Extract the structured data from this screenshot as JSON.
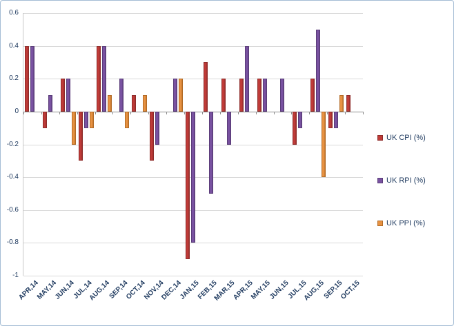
{
  "chart": {
    "background": "#ffffff",
    "frame_border_color": "#a3bcd4",
    "grid_color": "#d9d9d9",
    "zero_line_color": "#8c8c8c",
    "label_color": "#1f3a5f",
    "y_ticks": [
      "0.6",
      "0.4",
      "0.2",
      "0",
      "-0.2",
      "-0.4",
      "-0.6",
      "-0.8",
      "-1"
    ]
  },
  "chart_data": {
    "type": "bar",
    "title": "",
    "xlabel": "",
    "ylabel": "",
    "ylim": [
      -1,
      0.6
    ],
    "ytick_step": 0.2,
    "grid": true,
    "legend_position": "right",
    "categories": [
      "APR,14",
      "MAY,14",
      "JUN,14",
      "JUL,14",
      "AUG,14",
      "SEP,14",
      "OCT,14",
      "NOV,14",
      "DEC,14",
      "JAN,15",
      "FEB,15",
      "MAR,15",
      "APR,15",
      "MAY,15",
      "JUN,15",
      "JUL,15",
      "AUG,15",
      "SEP,15",
      "OCT,15"
    ],
    "series": [
      {
        "name": "UK CPI (%)",
        "color": "#bf3b38",
        "border": "#8e2b29",
        "values": [
          0.4,
          -0.1,
          0.2,
          -0.3,
          0.4,
          0,
          0.1,
          -0.3,
          0,
          -0.9,
          0.3,
          0.2,
          0.2,
          0.2,
          0,
          -0.2,
          0.2,
          -0.1,
          0.1
        ]
      },
      {
        "name": "UK RPI (%)",
        "color": "#7952a1",
        "border": "#5a3c79",
        "values": [
          0.4,
          0.1,
          0.2,
          -0.1,
          0.4,
          0.2,
          0,
          -0.2,
          0.2,
          -0.8,
          -0.5,
          -0.2,
          0.4,
          0.2,
          0.2,
          -0.1,
          0.5,
          -0.1,
          0
        ]
      },
      {
        "name": "UK PPI (%)",
        "color": "#e79242",
        "border": "#b26a25",
        "values": [
          0,
          0,
          -0.2,
          -0.1,
          0.1,
          -0.1,
          0.1,
          0,
          0.2,
          0,
          0,
          0,
          0,
          0,
          0,
          0,
          -0.4,
          0.1,
          0
        ]
      }
    ]
  }
}
